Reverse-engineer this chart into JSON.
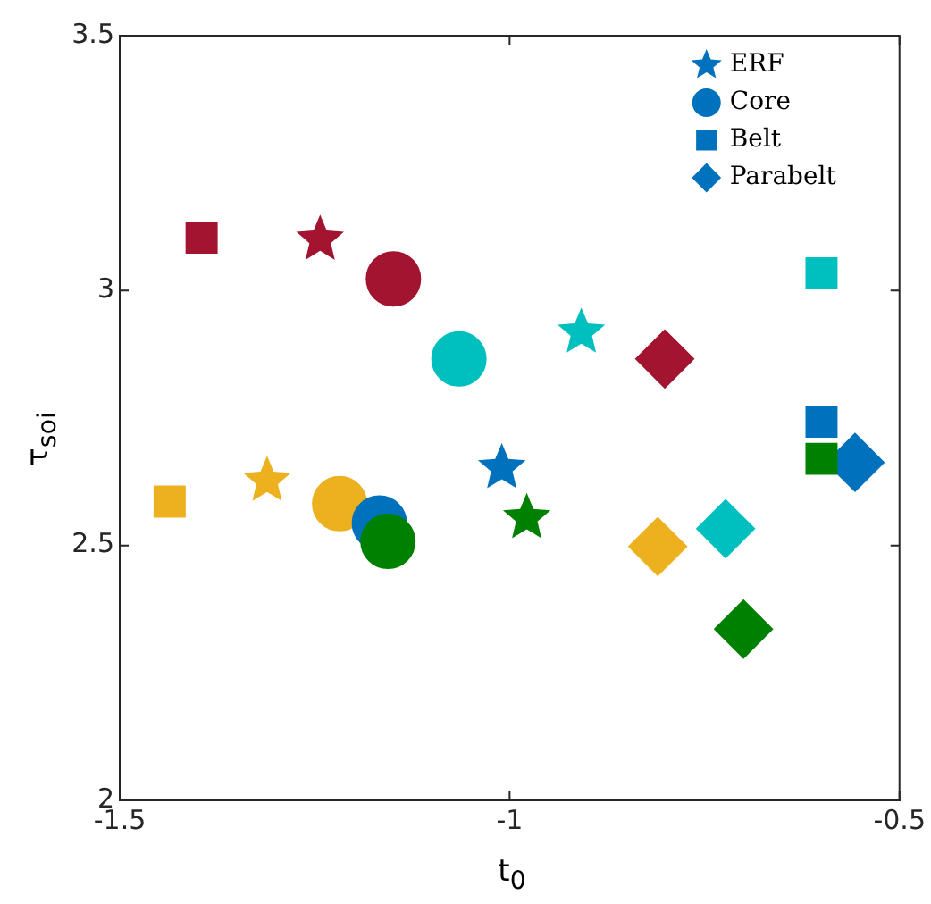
{
  "chart_data": {
    "type": "scatter",
    "xlabel": "t$_{0}$",
    "ylabel": "τ$_{soi}$",
    "xlim": [
      -1.5,
      -0.5
    ],
    "xticks": [
      -1.5,
      -1,
      -0.5
    ],
    "ylim": [
      2,
      3.5
    ],
    "yticks": [
      2,
      2.5,
      3,
      3.5
    ],
    "grid": false,
    "legend": "top right",
    "series": [
      {
        "name": "ERF",
        "marker": "star",
        "color": "#0072bd",
        "x": [
          -1.243,
          -1.311,
          -1.01,
          -0.978,
          -0.908
        ],
        "values": [
          3.1,
          2.627,
          2.652,
          2.554,
          2.918
        ],
        "colors": [
          "#a2142f",
          "#edb120",
          "#0072bd",
          "#008000",
          "#00bfbf"
        ]
      },
      {
        "name": "Core",
        "marker": "circle",
        "color": "#0072bd",
        "x": [
          -1.149,
          -1.065,
          -1.218,
          -1.167,
          -1.156
        ],
        "values": [
          3.023,
          2.866,
          2.582,
          2.544,
          2.508
        ],
        "colors": [
          "#a2142f",
          "#00bfbf",
          "#edb120",
          "#0072bd",
          "#008000"
        ]
      },
      {
        "name": "Belt",
        "marker": "square",
        "color": "#0072bd",
        "x": [
          -1.395,
          -1.436,
          -0.6,
          -0.6,
          -0.6
        ],
        "values": [
          3.104,
          2.586,
          3.034,
          2.743,
          2.67
        ],
        "colors": [
          "#a2142f",
          "#edb120",
          "#00bfbf",
          "#0072bd",
          "#008000"
        ]
      },
      {
        "name": "Parabelt",
        "marker": "diamond",
        "color": "#0072bd",
        "x": [
          -0.801,
          -0.81,
          -0.723,
          -0.7,
          -0.557
        ],
        "values": [
          2.866,
          2.498,
          2.533,
          2.336,
          2.663
        ],
        "colors": [
          "#a2142f",
          "#edb120",
          "#00bfbf",
          "#008000",
          "#0072bd"
        ]
      }
    ]
  }
}
